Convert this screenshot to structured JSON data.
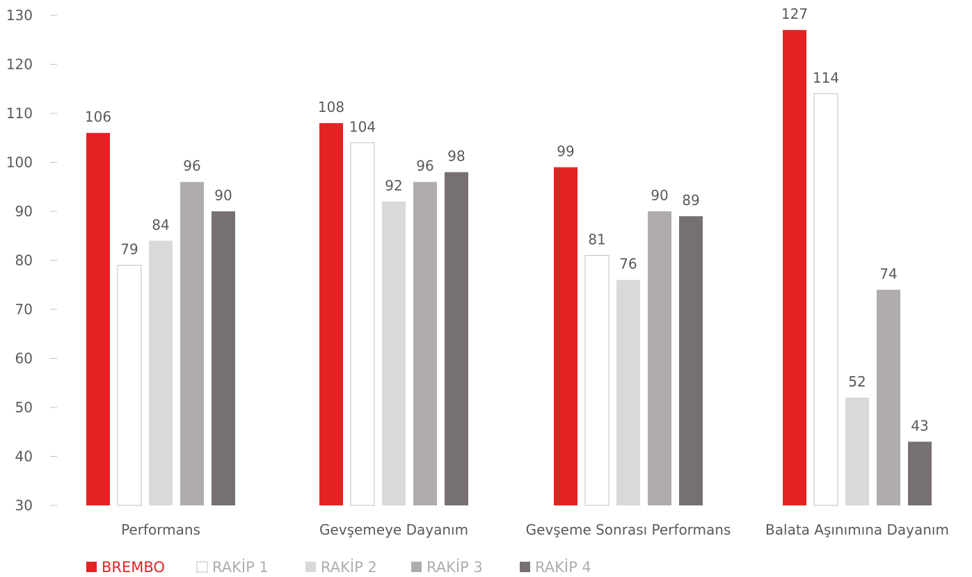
{
  "chart_data": {
    "type": "bar",
    "title": "",
    "xlabel": "",
    "ylabel": "",
    "ylim": [
      30,
      130
    ],
    "yticks": [
      30,
      40,
      50,
      60,
      70,
      80,
      90,
      100,
      110,
      120,
      130
    ],
    "categories": [
      "Performans",
      "Gevşemeye Dayanım",
      "Gevşeme Sonrası Performans",
      "Balata Aşınımına Dayanım"
    ],
    "series": [
      {
        "name": "BREMBO",
        "color": "#e32322",
        "values": [
          106,
          108,
          99,
          127
        ]
      },
      {
        "name": "RAKİP 1",
        "color": "#ffffff",
        "values": [
          79,
          104,
          81,
          114
        ]
      },
      {
        "name": "RAKİP 2",
        "color": "#d9d9d9",
        "values": [
          84,
          92,
          76,
          52
        ]
      },
      {
        "name": "RAKİP 3",
        "color": "#b0acab",
        "values": [
          96,
          96,
          90,
          74
        ]
      },
      {
        "name": "RAKİP 4",
        "color": "#767170",
        "values": [
          90,
          98,
          89,
          43
        ]
      }
    ],
    "data_labels": [
      [
        "106",
        "79",
        "84",
        "96",
        "90"
      ],
      [
        "108",
        "104",
        "92",
        "96",
        "98"
      ],
      [
        "99",
        "81",
        "76",
        "90",
        "89"
      ],
      [
        "127",
        "114",
        "52",
        "74",
        "43"
      ]
    ],
    "legend": "bottom-left",
    "grid": false
  },
  "colors": {
    "axis_text": "#58595b",
    "tick_mark": "#bfbfbf",
    "bar_outline": "#bfbfbf",
    "legend_text": "#b0acab"
  }
}
